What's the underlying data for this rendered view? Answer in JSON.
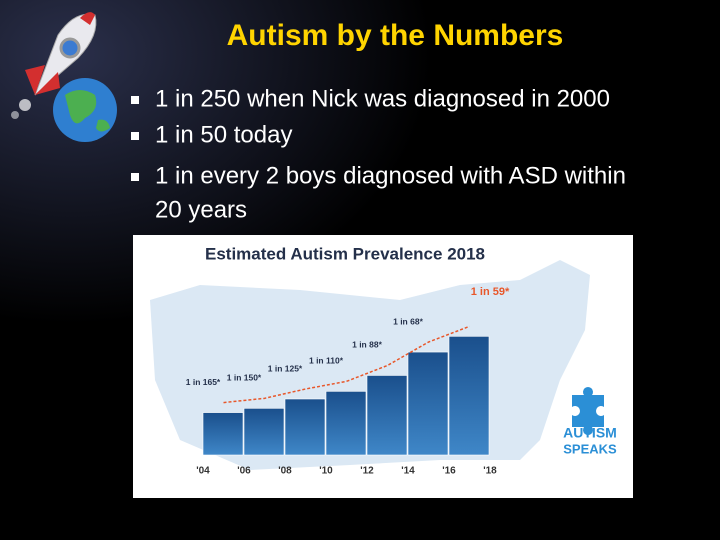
{
  "slide": {
    "title": "Autism by the Numbers",
    "bullets": [
      "1 in 250 when Nick was diagnosed in 2000",
      "1 in 50 today",
      "1 in every 2 boys diagnosed with ASD within",
      "20 years"
    ]
  },
  "chart_data": {
    "type": "bar",
    "title": "Estimated Autism Prevalence 2018",
    "categories": [
      "'04",
      "'06",
      "'08",
      "'10",
      "'12",
      "'14",
      "'16"
    ],
    "x_tick_labels": [
      "'04",
      "'06",
      "'08",
      "'10",
      "'12",
      "'14",
      "'16",
      "'18"
    ],
    "values": [
      165,
      150,
      125,
      110,
      88,
      68,
      59
    ],
    "value_labels": [
      "1 in 165*",
      "1 in 150*",
      "1 in 125*",
      "1 in 110*",
      "1 in 88*",
      "1 in 68*",
      "1 in 59*"
    ],
    "color": "#1f5f9e",
    "highlight_color": "#e8572a",
    "logo": [
      "AUTISM",
      "SPEAKS"
    ]
  }
}
